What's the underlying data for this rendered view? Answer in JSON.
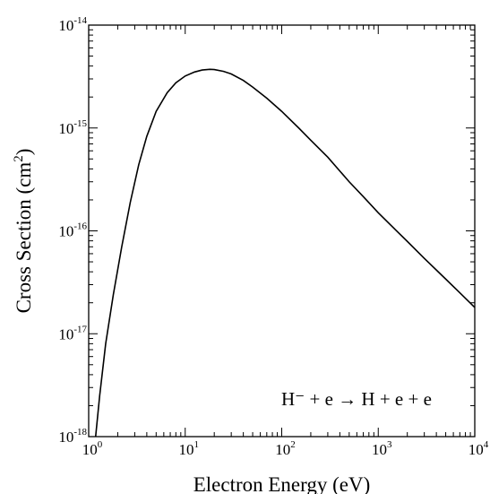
{
  "chart_data": {
    "type": "line",
    "title": "",
    "xlabel": "Electron Energy (eV)",
    "ylabel_main": "Cross Section (cm",
    "ylabel_sup": "2",
    "ylabel_close": ")",
    "xscale": "log",
    "yscale": "log",
    "xlim": [
      1,
      10000
    ],
    "ylim": [
      1e-18,
      1e-14
    ],
    "grid": false,
    "x_ticks": [
      {
        "value": 1,
        "base": "10",
        "exp": "0"
      },
      {
        "value": 10,
        "base": "10",
        "exp": "1"
      },
      {
        "value": 100,
        "base": "10",
        "exp": "2"
      },
      {
        "value": 1000,
        "base": "10",
        "exp": "3"
      },
      {
        "value": 10000,
        "base": "10",
        "exp": "4"
      }
    ],
    "y_ticks": [
      {
        "value": 1e-18,
        "base": "10",
        "exp": "-18"
      },
      {
        "value": 1e-17,
        "base": "10",
        "exp": "-17"
      },
      {
        "value": 1e-16,
        "base": "10",
        "exp": "-16"
      },
      {
        "value": 1e-15,
        "base": "10",
        "exp": "-15"
      },
      {
        "value": 1e-14,
        "base": "10",
        "exp": "-14"
      }
    ],
    "annotation": {
      "text": "H⁻ + e → H + e + e",
      "placement": "bottom-right"
    },
    "series": [
      {
        "color": "#000000",
        "x": [
          1.18,
          1.3,
          1.5,
          1.8,
          2.2,
          2.7,
          3.3,
          4,
          5,
          6.5,
          8,
          10,
          12.5,
          15,
          18,
          20,
          25,
          30,
          40,
          50,
          70,
          100,
          150,
          200,
          300,
          500,
          700,
          1000,
          1500,
          2000,
          3000,
          5000,
          7000,
          10000
        ],
        "y": [
          1e-18,
          2.5e-18,
          8e-18,
          2.4e-17,
          7e-17,
          1.9e-16,
          4.4e-16,
          8.3e-16,
          1.45e-15,
          2.2e-15,
          2.75e-15,
          3.2e-15,
          3.5e-15,
          3.66e-15,
          3.72e-15,
          3.7e-15,
          3.55e-15,
          3.35e-15,
          2.9e-15,
          2.5e-15,
          1.95e-15,
          1.45e-15,
          1e-15,
          7.6e-16,
          5.2e-16,
          3e-16,
          2.15e-16,
          1.5e-16,
          1.03e-16,
          7.9e-17,
          5.4e-17,
          3.4e-17,
          2.5e-17,
          1.8e-17
        ]
      }
    ]
  }
}
